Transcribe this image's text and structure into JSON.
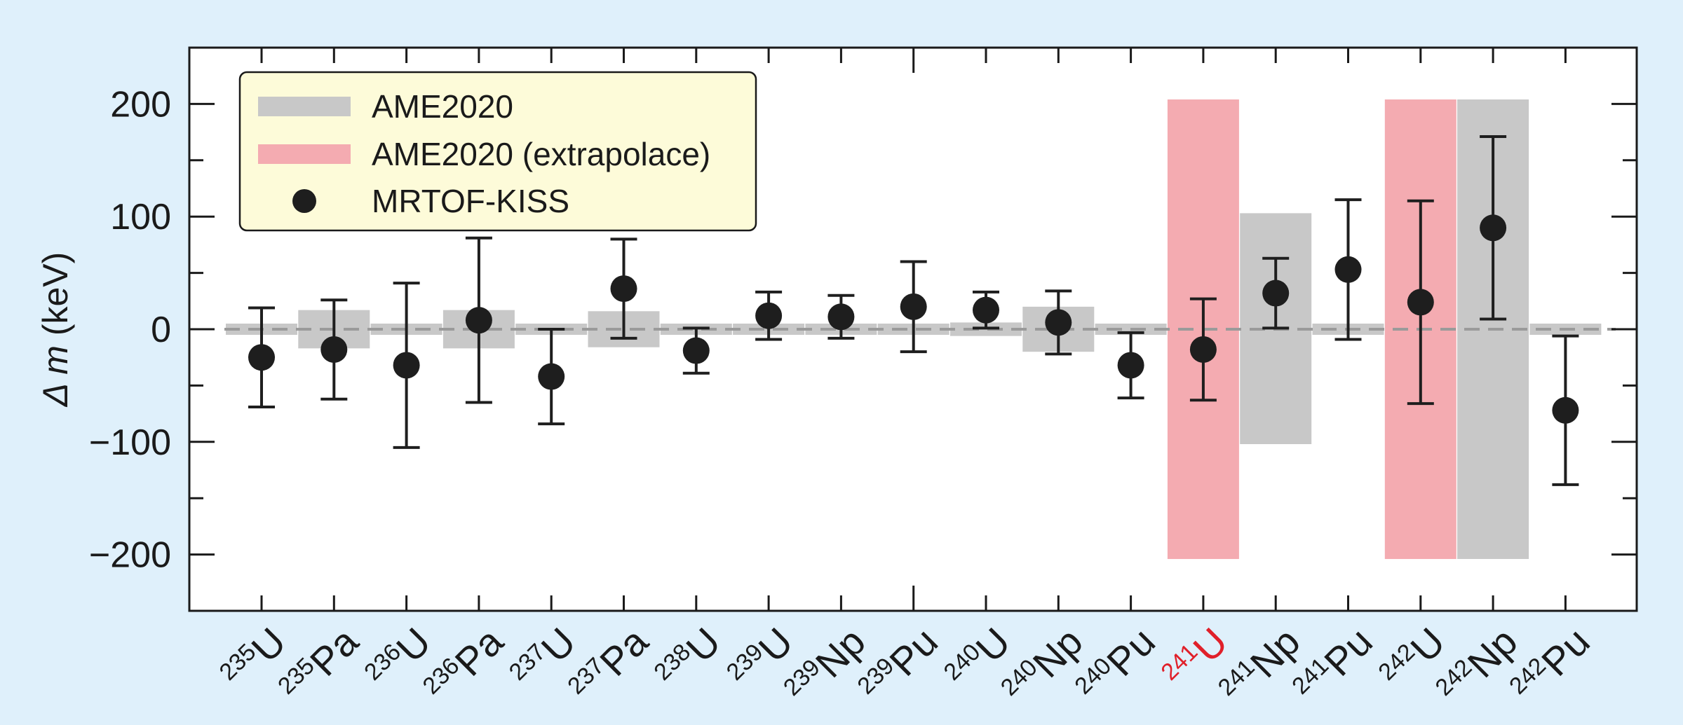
{
  "chart_data": {
    "type": "scatter",
    "title": "",
    "xlabel": "",
    "ylabel": {
      "symbol": "Δ m",
      "unit": "(keV)"
    },
    "ylim": [
      -250,
      250
    ],
    "yticks": [
      -200,
      -100,
      0,
      100,
      200
    ],
    "reference_line": 0,
    "grid": false,
    "legend_position": "top-left",
    "legend": [
      {
        "key": "ame",
        "label": "AME2020",
        "color": "#c8c8c8",
        "marker": "band"
      },
      {
        "key": "extra",
        "label": "AME2020 (extrapolace)",
        "color": "#f4abb1",
        "marker": "band"
      },
      {
        "key": "mrtof",
        "label": "MRTOF-KISS",
        "color": "#1e1e1e",
        "marker": "circle"
      }
    ],
    "categories": [
      {
        "mass": "235",
        "element": "U",
        "highlight": false
      },
      {
        "mass": "235",
        "element": "Pa",
        "highlight": false
      },
      {
        "mass": "236",
        "element": "U",
        "highlight": false
      },
      {
        "mass": "236",
        "element": "Pa",
        "highlight": false
      },
      {
        "mass": "237",
        "element": "U",
        "highlight": false
      },
      {
        "mass": "237",
        "element": "Pa",
        "highlight": false
      },
      {
        "mass": "238",
        "element": "U",
        "highlight": false
      },
      {
        "mass": "239",
        "element": "U",
        "highlight": false
      },
      {
        "mass": "239",
        "element": "Np",
        "highlight": false
      },
      {
        "mass": "239",
        "element": "Pu",
        "highlight": false
      },
      {
        "mass": "240",
        "element": "U",
        "highlight": false
      },
      {
        "mass": "240",
        "element": "Np",
        "highlight": false
      },
      {
        "mass": "240",
        "element": "Pu",
        "highlight": false
      },
      {
        "mass": "241",
        "element": "U",
        "highlight": true
      },
      {
        "mass": "241",
        "element": "Np",
        "highlight": false
      },
      {
        "mass": "241",
        "element": "Pu",
        "highlight": false
      },
      {
        "mass": "242",
        "element": "U",
        "highlight": false
      },
      {
        "mass": "242",
        "element": "Np",
        "highlight": false
      },
      {
        "mass": "242",
        "element": "Pu",
        "highlight": false
      }
    ],
    "highlight_color": "#e0202a",
    "series": [
      {
        "name": "MRTOF-KISS",
        "color": "#1e1e1e",
        "values": [
          -25,
          -18,
          -32,
          8,
          -42,
          36,
          -19,
          12,
          11,
          20,
          17,
          6,
          -32,
          -18,
          32,
          53,
          24,
          90,
          -72
        ],
        "errors": [
          44,
          44,
          73,
          73,
          42,
          44,
          20,
          21,
          19,
          40,
          16,
          28,
          29,
          45,
          31,
          62,
          90,
          81,
          66
        ]
      }
    ],
    "ame_bands": [
      {
        "index": 0,
        "lower": -5,
        "upper": 5,
        "extrapolated": false
      },
      {
        "index": 1,
        "lower": -17,
        "upper": 17,
        "extrapolated": false
      },
      {
        "index": 2,
        "lower": -5,
        "upper": 5,
        "extrapolated": false
      },
      {
        "index": 3,
        "lower": -17,
        "upper": 17,
        "extrapolated": false
      },
      {
        "index": 4,
        "lower": -5,
        "upper": 5,
        "extrapolated": false
      },
      {
        "index": 5,
        "lower": -16,
        "upper": 16,
        "extrapolated": false
      },
      {
        "index": 6,
        "lower": -5,
        "upper": 5,
        "extrapolated": false
      },
      {
        "index": 7,
        "lower": -5,
        "upper": 5,
        "extrapolated": false
      },
      {
        "index": 8,
        "lower": -5,
        "upper": 5,
        "extrapolated": false
      },
      {
        "index": 9,
        "lower": -5,
        "upper": 5,
        "extrapolated": false
      },
      {
        "index": 10,
        "lower": -6,
        "upper": 6,
        "extrapolated": false
      },
      {
        "index": 11,
        "lower": -20,
        "upper": 20,
        "extrapolated": false
      },
      {
        "index": 12,
        "lower": -5,
        "upper": 5,
        "extrapolated": false
      },
      {
        "index": 13,
        "lower": -204,
        "upper": 204,
        "extrapolated": true
      },
      {
        "index": 14,
        "lower": -102,
        "upper": 103,
        "extrapolated": false
      },
      {
        "index": 15,
        "lower": -5,
        "upper": 5,
        "extrapolated": false
      },
      {
        "index": 16,
        "lower": -204,
        "upper": 204,
        "extrapolated": true
      },
      {
        "index": 17,
        "lower": -204,
        "upper": 204,
        "extrapolated": false
      },
      {
        "index": 18,
        "lower": -5,
        "upper": 5,
        "extrapolated": false
      }
    ]
  }
}
